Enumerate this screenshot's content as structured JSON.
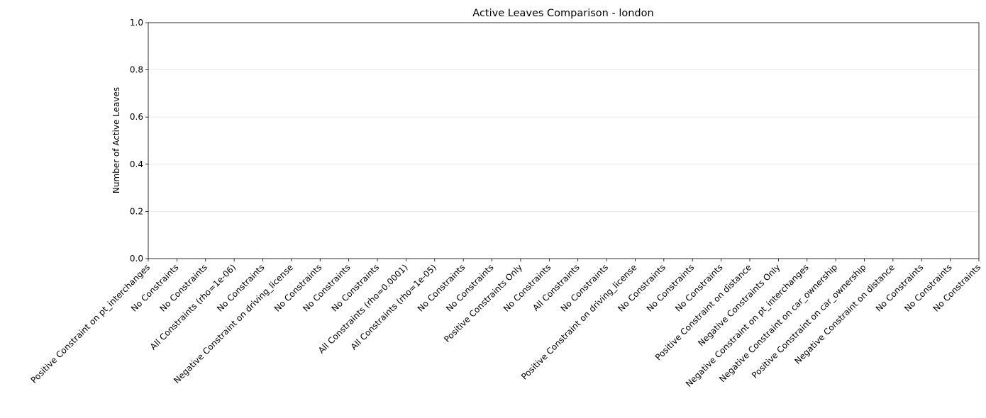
{
  "chart_data": {
    "type": "bar",
    "title": "Active Leaves Comparison - london",
    "ylabel": "Number of Active Leaves",
    "categories": [
      "Positive Constraint on pt_interchanges",
      "No Constraints",
      "No Constraints",
      "All Constraints (rho=1e-06)",
      "No Constraints",
      "Negative Constraint on driving_license",
      "No Constraints",
      "No Constraints",
      "No Constraints",
      "All Constraints (rho=0.0001)",
      "All Constraints (rho=1e-05)",
      "No Constraints",
      "No Constraints",
      "Positive Constraints Only",
      "No Constraints",
      "All Constraints",
      "No Constraints",
      "Positive Constraint on driving_license",
      "No Constraints",
      "No Constraints",
      "No Constraints",
      "Positive Constraint on distance",
      "Negative Constraints Only",
      "Negative Constraint on pt_interchanges",
      "Negative Constraint on car_ownership",
      "Positive Constraint on car_ownership",
      "Negative Constraint on distance",
      "No Constraints",
      "No Constraints",
      "No Constraints"
    ],
    "values": [
      0,
      0,
      0,
      0,
      0,
      0,
      0,
      0,
      0,
      0,
      0,
      0,
      0,
      0,
      0,
      0,
      0,
      0,
      0,
      0,
      0,
      0,
      0,
      0,
      0,
      0,
      0,
      0,
      0,
      0
    ],
    "color": "#1f77b4",
    "ylim": [
      0,
      1
    ],
    "yticks": [
      {
        "value": 0,
        "label": "0.0"
      },
      {
        "value": 0.2,
        "label": "0.2"
      },
      {
        "value": 0.4,
        "label": "0.4"
      },
      {
        "value": 0.6,
        "label": "0.6"
      },
      {
        "value": 0.8,
        "label": "0.8"
      },
      {
        "value": 1,
        "label": "1.0"
      }
    ],
    "grid": true
  }
}
